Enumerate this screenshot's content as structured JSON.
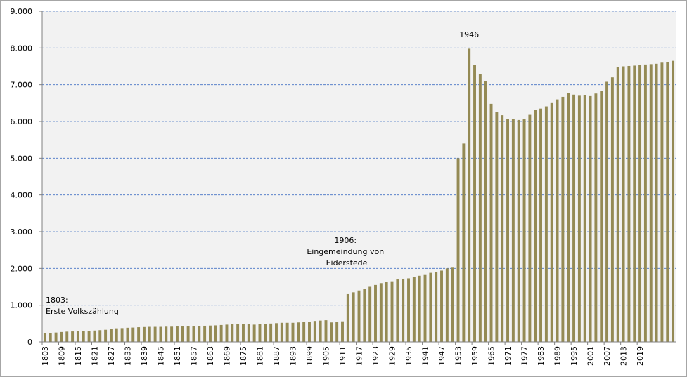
{
  "chart_data": {
    "type": "bar",
    "title": "",
    "xlabel": "",
    "ylabel": "",
    "ylim": [
      0,
      9000
    ],
    "yticks": [
      "0",
      "1.000",
      "2.000",
      "3.000",
      "4.000",
      "5.000",
      "6.000",
      "7.000",
      "8.000",
      "9.000"
    ],
    "grid": true,
    "legend": "none",
    "colors": {
      "bar": "#948A54",
      "grid": "#4472C4",
      "plot_bg": "#F2F2F2",
      "axis": "#808080"
    },
    "x_tick_labels": [
      "1803",
      "1809",
      "1815",
      "1821",
      "1827",
      "1833",
      "1839",
      "1845",
      "1851",
      "1857",
      "1863",
      "1869",
      "1875",
      "1881",
      "1887",
      "1893",
      "1899",
      "1905",
      "1911",
      "1917",
      "1923",
      "1929",
      "1935",
      "1941",
      "1947",
      "1953",
      "1959",
      "1965",
      "1971",
      "1977",
      "1983",
      "1989",
      "1995",
      "2001",
      "2007",
      "2013",
      "2019"
    ],
    "values": [
      230,
      245,
      255,
      270,
      280,
      285,
      290,
      295,
      300,
      310,
      320,
      330,
      360,
      370,
      375,
      385,
      390,
      400,
      405,
      410,
      410,
      410,
      415,
      415,
      420,
      420,
      420,
      420,
      430,
      440,
      445,
      450,
      460,
      470,
      480,
      490,
      490,
      480,
      470,
      480,
      490,
      500,
      510,
      520,
      520,
      520,
      530,
      540,
      550,
      570,
      580,
      590,
      530,
      540,
      560,
      1300,
      1350,
      1400,
      1450,
      1500,
      1550,
      1600,
      1630,
      1650,
      1700,
      1720,
      1730,
      1760,
      1800,
      1840,
      1880,
      1910,
      1940,
      2000,
      2020,
      5000,
      5400,
      7980,
      7530,
      7280,
      7100,
      6480,
      6250,
      6170,
      6070,
      6060,
      6040,
      6070,
      6180,
      6320,
      6350,
      6410,
      6500,
      6600,
      6670,
      6780,
      6730,
      6700,
      6710,
      6690,
      6760,
      6840,
      7080,
      7200,
      7480,
      7500,
      7510,
      7520,
      7530,
      7550,
      7560,
      7570,
      7600,
      7620,
      7650
    ],
    "annotations": [
      {
        "lines": [
          "1803:",
          "Erste Volkszählung"
        ],
        "align": "left"
      },
      {
        "lines": [
          "1906:",
          "Eingemeindung von",
          "Eiderstede"
        ],
        "align": "center"
      },
      {
        "lines": [
          "1946"
        ],
        "align": "center"
      }
    ]
  }
}
